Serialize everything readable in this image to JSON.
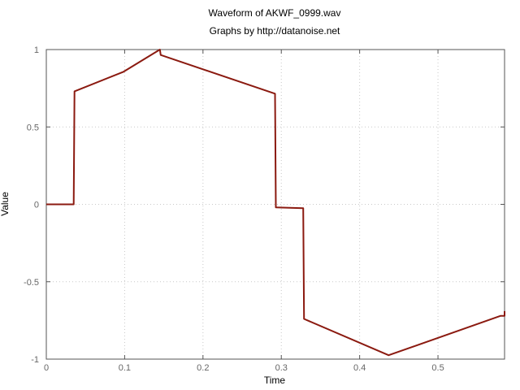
{
  "chart_data": {
    "type": "line",
    "title": "Waveform of AKWF_0999.wav",
    "subtitle": "Graphs by http://datanoise.net",
    "xlabel": "Time",
    "ylabel": "Value",
    "xlim": [
      0,
      0.585
    ],
    "ylim": [
      -1,
      1
    ],
    "grid": true,
    "line_color": "#8b1a10",
    "x_ticks": [
      {
        "value": 0,
        "label": "0"
      },
      {
        "value": 0.1,
        "label": "0.1"
      },
      {
        "value": 0.2,
        "label": "0.2"
      },
      {
        "value": 0.3,
        "label": "0.3"
      },
      {
        "value": 0.4,
        "label": "0.4"
      },
      {
        "value": 0.5,
        "label": "0.5"
      }
    ],
    "y_ticks": [
      {
        "value": -1,
        "label": "-1"
      },
      {
        "value": -0.5,
        "label": "-0.5"
      },
      {
        "value": 0,
        "label": "0"
      },
      {
        "value": 0.5,
        "label": "0.5"
      },
      {
        "value": 1,
        "label": "1"
      }
    ],
    "series": [
      {
        "x": [
          0,
          0.035,
          0.036,
          0.098,
          0.145,
          0.146,
          0.292,
          0.293,
          0.328,
          0.329,
          0.437,
          0.58,
          0.585,
          0.585
        ],
        "y": [
          0.0,
          0.0,
          0.73,
          0.855,
          1.0,
          0.965,
          0.715,
          -0.02,
          -0.025,
          -0.74,
          -0.975,
          -0.72,
          -0.72,
          -0.69
        ]
      }
    ]
  }
}
